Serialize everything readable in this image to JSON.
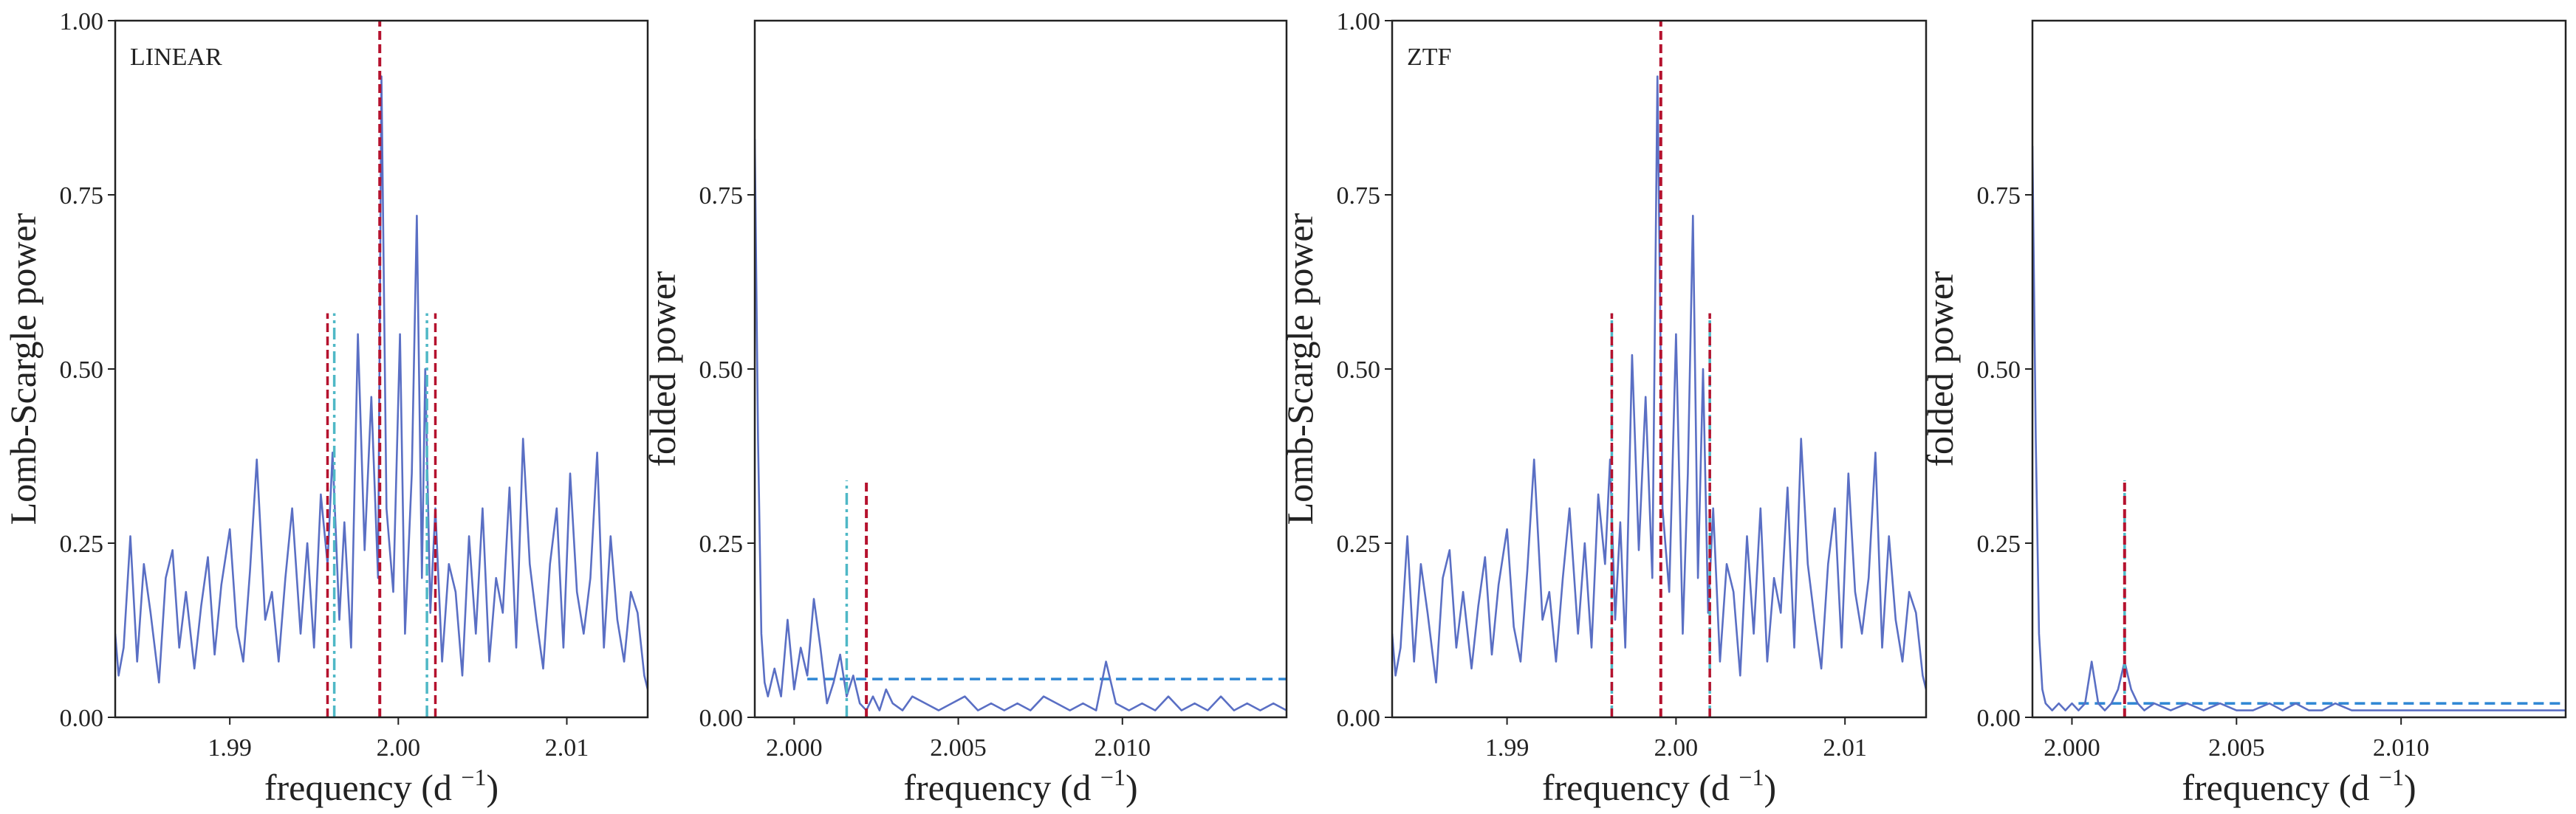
{
  "colors": {
    "spectrum": "#5a6fc4",
    "main_peak": "#b5122e",
    "alias": "#4fb8c6",
    "threshold": "#2e86d4",
    "frame": "#222222"
  },
  "chart_data": [
    {
      "type": "line",
      "panel_label": "LINEAR",
      "xlabel": "frequency (d",
      "xlabel_sup": "−1",
      "xlabel_close": ")",
      "ylabel": "Lomb-Scargle power",
      "xlim": [
        1.9832,
        2.0148
      ],
      "ylim": [
        0,
        1.0
      ],
      "xticks": [
        1.99,
        2.0,
        2.01
      ],
      "xtick_labels": [
        "1.99",
        "2.00",
        "2.01"
      ],
      "yticks": [
        0,
        0.25,
        0.5,
        0.75,
        1.0
      ],
      "ytick_labels": [
        "0.00",
        "0.25",
        "0.50",
        "0.75",
        "1.00"
      ],
      "series": [
        {
          "x": [
            1.9832,
            1.9834,
            1.9837,
            1.9841,
            1.9845,
            1.9849,
            1.9853,
            1.9858,
            1.9862,
            1.9866,
            1.987,
            1.9874,
            1.9879,
            1.9883,
            1.9887,
            1.9891,
            1.9895,
            1.99,
            1.9904,
            1.9908,
            1.9912,
            1.9916,
            1.9921,
            1.9925,
            1.9929,
            1.9933,
            1.9937,
            1.9942,
            1.9946,
            1.995,
            1.9954,
            1.9958,
            1.9961,
            1.9965,
            1.9968,
            1.9972,
            1.9976,
            1.998,
            1.9984,
            1.9988,
            1.999,
            1.9993,
            1.9997,
            2.0001,
            2.0004,
            2.0008,
            2.0011,
            2.0014,
            2.0016,
            2.0019,
            2.0022,
            2.0026,
            2.003,
            2.0034,
            2.0038,
            2.0042,
            2.0046,
            2.005,
            2.0054,
            2.0058,
            2.0062,
            2.0066,
            2.007,
            2.0074,
            2.0078,
            2.0082,
            2.0086,
            2.009,
            2.0094,
            2.0098,
            2.0102,
            2.0106,
            2.011,
            2.0114,
            2.0118,
            2.0122,
            2.0126,
            2.013,
            2.0134,
            2.0138,
            2.0142,
            2.0146,
            2.0148
          ],
          "y": [
            0.12,
            0.06,
            0.1,
            0.26,
            0.08,
            0.22,
            0.15,
            0.05,
            0.2,
            0.24,
            0.1,
            0.18,
            0.07,
            0.16,
            0.23,
            0.09,
            0.19,
            0.27,
            0.13,
            0.08,
            0.21,
            0.37,
            0.14,
            0.18,
            0.08,
            0.2,
            0.3,
            0.12,
            0.25,
            0.1,
            0.32,
            0.22,
            0.38,
            0.14,
            0.28,
            0.1,
            0.55,
            0.24,
            0.46,
            0.2,
            0.92,
            0.3,
            0.18,
            0.55,
            0.12,
            0.35,
            0.72,
            0.2,
            0.5,
            0.15,
            0.3,
            0.08,
            0.22,
            0.18,
            0.06,
            0.26,
            0.12,
            0.3,
            0.08,
            0.2,
            0.15,
            0.33,
            0.1,
            0.4,
            0.22,
            0.14,
            0.07,
            0.22,
            0.3,
            0.1,
            0.35,
            0.18,
            0.12,
            0.2,
            0.38,
            0.1,
            0.26,
            0.14,
            0.08,
            0.18,
            0.15,
            0.06,
            0.04
          ]
        }
      ],
      "vlines_main": [
        1.9989
      ],
      "vlines_side": [
        1.9958,
        2.0022
      ],
      "vlines_alias": [
        1.9962,
        2.0017
      ],
      "vline_heights": {
        "main": 1.0,
        "side": 0.58,
        "alias": 0.58
      },
      "ylabel_visible": true
    },
    {
      "type": "line",
      "xlabel": "frequency (d",
      "xlabel_sup": "−1",
      "xlabel_close": ")",
      "ylabel": "folded power",
      "xlim": [
        1.9988,
        2.015
      ],
      "ylim": [
        0,
        1.0
      ],
      "xticks": [
        2.0,
        2.005,
        2.01
      ],
      "xtick_labels": [
        "2.000",
        "2.005",
        "2.010"
      ],
      "yticks": [
        0,
        0.25,
        0.5,
        0.75
      ],
      "ytick_labels": [
        "0.00",
        "0.25",
        "0.50",
        "0.75"
      ],
      "series": [
        {
          "x": [
            1.9988,
            1.9989,
            1.999,
            1.9991,
            1.9992,
            1.9994,
            1.9996,
            1.9998,
            2.0,
            2.0002,
            2.0004,
            2.0006,
            2.0008,
            2.001,
            2.0012,
            2.0014,
            2.0016,
            2.0018,
            2.002,
            2.0022,
            2.0024,
            2.0026,
            2.0028,
            2.003,
            2.0033,
            2.0036,
            2.004,
            2.0044,
            2.0048,
            2.0052,
            2.0056,
            2.006,
            2.0064,
            2.0068,
            2.0072,
            2.0076,
            2.008,
            2.0084,
            2.0088,
            2.0092,
            2.0095,
            2.0098,
            2.0102,
            2.0106,
            2.011,
            2.0114,
            2.0118,
            2.0122,
            2.0126,
            2.013,
            2.0134,
            2.0138,
            2.0142,
            2.0146,
            2.015
          ],
          "y": [
            0.83,
            0.4,
            0.12,
            0.05,
            0.03,
            0.07,
            0.03,
            0.14,
            0.04,
            0.1,
            0.06,
            0.17,
            0.1,
            0.02,
            0.05,
            0.09,
            0.03,
            0.06,
            0.02,
            0.01,
            0.03,
            0.01,
            0.04,
            0.02,
            0.01,
            0.03,
            0.02,
            0.01,
            0.02,
            0.03,
            0.01,
            0.02,
            0.01,
            0.02,
            0.01,
            0.03,
            0.02,
            0.01,
            0.02,
            0.01,
            0.08,
            0.02,
            0.01,
            0.02,
            0.01,
            0.03,
            0.01,
            0.02,
            0.01,
            0.03,
            0.01,
            0.02,
            0.01,
            0.02,
            0.01
          ]
        }
      ],
      "vlines_main": [
        2.0022
      ],
      "vlines_alias": [
        2.0016
      ],
      "vline_heights": {
        "main": 0.34,
        "alias": 0.34
      },
      "threshold": {
        "y": 0.055,
        "x_start": 2.0004
      }
    },
    {
      "type": "line",
      "panel_label": "ZTF",
      "xlabel": "frequency (d",
      "xlabel_sup": "−1",
      "xlabel_close": ")",
      "ylabel": "Lomb-Scargle power",
      "xlim": [
        1.9832,
        2.0148
      ],
      "ylim": [
        0,
        1.0
      ],
      "xticks": [
        1.99,
        2.0,
        2.01
      ],
      "xtick_labels": [
        "1.99",
        "2.00",
        "2.01"
      ],
      "yticks": [
        0,
        0.25,
        0.5,
        0.75,
        1.0
      ],
      "ytick_labels": [
        "0.00",
        "0.25",
        "0.50",
        "0.75",
        "1.00"
      ],
      "series": [
        {
          "x": [
            1.9832,
            1.9834,
            1.9837,
            1.9841,
            1.9845,
            1.9849,
            1.9853,
            1.9858,
            1.9862,
            1.9866,
            1.987,
            1.9874,
            1.9879,
            1.9883,
            1.9887,
            1.9891,
            1.9895,
            1.99,
            1.9904,
            1.9908,
            1.9912,
            1.9916,
            1.9921,
            1.9925,
            1.9929,
            1.9933,
            1.9937,
            1.9942,
            1.9946,
            1.995,
            1.9954,
            1.9958,
            1.9961,
            1.9964,
            1.9967,
            1.997,
            1.9974,
            1.9978,
            1.9982,
            1.9986,
            1.9989,
            1.9992,
            1.9996,
            2.0,
            2.0004,
            2.0007,
            2.001,
            2.0013,
            2.0016,
            2.0019,
            2.0022,
            2.0026,
            2.003,
            2.0034,
            2.0038,
            2.0042,
            2.0046,
            2.005,
            2.0054,
            2.0058,
            2.0062,
            2.0066,
            2.007,
            2.0074,
            2.0078,
            2.0082,
            2.0086,
            2.009,
            2.0094,
            2.0098,
            2.0102,
            2.0106,
            2.011,
            2.0114,
            2.0118,
            2.0122,
            2.0126,
            2.013,
            2.0134,
            2.0138,
            2.0142,
            2.0146,
            2.0148
          ],
          "y": [
            0.12,
            0.06,
            0.1,
            0.26,
            0.08,
            0.22,
            0.15,
            0.05,
            0.2,
            0.24,
            0.1,
            0.18,
            0.07,
            0.16,
            0.23,
            0.09,
            0.19,
            0.27,
            0.13,
            0.08,
            0.21,
            0.37,
            0.14,
            0.18,
            0.08,
            0.2,
            0.3,
            0.12,
            0.25,
            0.1,
            0.32,
            0.22,
            0.37,
            0.14,
            0.28,
            0.1,
            0.52,
            0.24,
            0.46,
            0.2,
            0.92,
            0.3,
            0.18,
            0.55,
            0.12,
            0.35,
            0.72,
            0.2,
            0.5,
            0.15,
            0.3,
            0.08,
            0.22,
            0.18,
            0.06,
            0.26,
            0.12,
            0.3,
            0.08,
            0.2,
            0.15,
            0.33,
            0.1,
            0.4,
            0.22,
            0.14,
            0.07,
            0.22,
            0.3,
            0.1,
            0.35,
            0.18,
            0.12,
            0.2,
            0.38,
            0.1,
            0.26,
            0.14,
            0.08,
            0.18,
            0.15,
            0.06,
            0.04
          ]
        }
      ],
      "vlines_main": [
        1.9991
      ],
      "vlines_side": [
        1.9962,
        2.002
      ],
      "vlines_alias": [
        1.9962,
        2.002
      ],
      "vline_heights": {
        "main": 1.0,
        "side": 0.58,
        "alias": 0.58
      }
    },
    {
      "type": "line",
      "xlabel": "frequency (d",
      "xlabel_sup": "−1",
      "xlabel_close": ")",
      "ylabel": "folded power",
      "xlim": [
        1.9988,
        2.015
      ],
      "ylim": [
        0,
        1.0
      ],
      "xticks": [
        2.0,
        2.005,
        2.01
      ],
      "xtick_labels": [
        "2.000",
        "2.005",
        "2.010"
      ],
      "yticks": [
        0,
        0.25,
        0.5,
        0.75
      ],
      "ytick_labels": [
        "0.00",
        "0.25",
        "0.50",
        "0.75"
      ],
      "series": [
        {
          "x": [
            1.9988,
            1.9989,
            1.999,
            1.9991,
            1.9992,
            1.9994,
            1.9996,
            1.9998,
            2.0,
            2.0002,
            2.0004,
            2.0006,
            2.0008,
            2.001,
            2.0012,
            2.0014,
            2.0016,
            2.0017,
            2.0018,
            2.002,
            2.0022,
            2.0025,
            2.003,
            2.0035,
            2.004,
            2.0045,
            2.005,
            2.0055,
            2.006,
            2.0064,
            2.0068,
            2.0072,
            2.0076,
            2.008,
            2.0085,
            2.009,
            2.0095,
            2.01,
            2.0105,
            2.011,
            2.0115,
            2.012,
            2.0125,
            2.013,
            2.0135,
            2.014,
            2.0145,
            2.015
          ],
          "y": [
            0.82,
            0.4,
            0.12,
            0.04,
            0.02,
            0.01,
            0.02,
            0.01,
            0.02,
            0.01,
            0.02,
            0.08,
            0.02,
            0.01,
            0.02,
            0.04,
            0.08,
            0.06,
            0.04,
            0.02,
            0.01,
            0.02,
            0.01,
            0.02,
            0.01,
            0.02,
            0.01,
            0.01,
            0.02,
            0.01,
            0.02,
            0.01,
            0.01,
            0.02,
            0.01,
            0.01,
            0.01,
            0.01,
            0.01,
            0.01,
            0.01,
            0.01,
            0.01,
            0.01,
            0.01,
            0.01,
            0.01,
            0.01
          ]
        }
      ],
      "vlines_main": [
        2.0016
      ],
      "vlines_alias": [
        2.0016
      ],
      "vline_heights": {
        "main": 0.34,
        "alias": 0.34
      },
      "threshold": {
        "y": 0.02,
        "x_start": 2.0002
      }
    }
  ]
}
